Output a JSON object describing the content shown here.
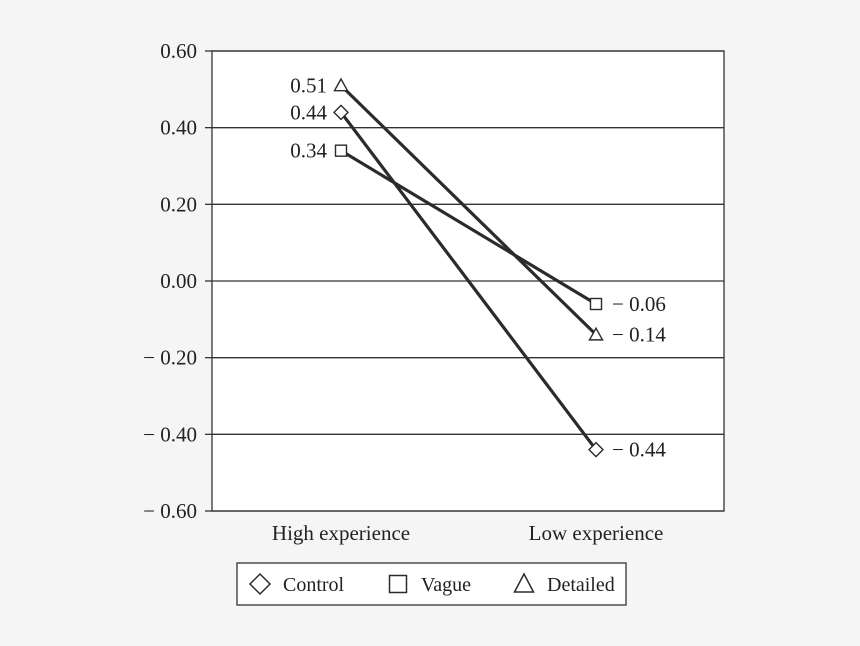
{
  "chart_data": {
    "type": "line",
    "title": "",
    "xlabel": "",
    "ylabel": "",
    "categories": [
      "High experience",
      "Low experience"
    ],
    "ylim": [
      -0.6,
      0.6
    ],
    "yticks": [
      0.6,
      0.4,
      0.2,
      0.0,
      -0.2,
      -0.4,
      -0.6
    ],
    "ytick_labels": [
      "0.60",
      "0.40",
      "0.20",
      "0.00",
      "− 0.20",
      "− 0.40",
      "− 0.60"
    ],
    "grid": true,
    "legend_position": "bottom",
    "series": [
      {
        "name": "Control",
        "marker": "diamond",
        "values": [
          0.44,
          -0.44
        ],
        "labels": [
          "0.44",
          "− 0.44"
        ]
      },
      {
        "name": "Vague",
        "marker": "square",
        "values": [
          0.34,
          -0.06
        ],
        "labels": [
          "0.34",
          "− 0.06"
        ]
      },
      {
        "name": "Detailed",
        "marker": "triangle",
        "values": [
          0.51,
          -0.14
        ],
        "labels": [
          "0.51",
          "− 0.14"
        ]
      }
    ],
    "colors": {
      "line": "#2b2b2b",
      "grid": "#333333",
      "background": "#f5f5f5",
      "plot_bg": "#ffffff"
    }
  }
}
